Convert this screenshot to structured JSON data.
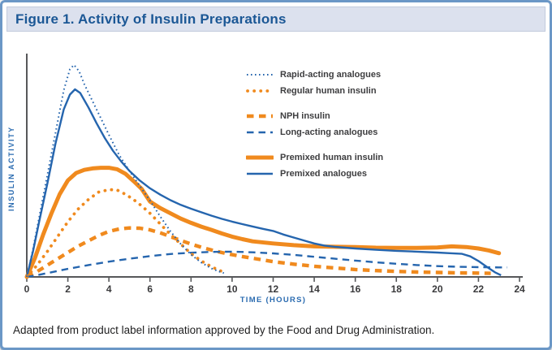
{
  "ui": {
    "title": "Figure 1. Activity of Insulin Preparations",
    "footnote": "Adapted from product label information approved by the Food and Drug Administration.",
    "colors": {
      "frame_border": "#6b97c6",
      "titlebar_bg": "#dce1ee",
      "title_text": "#1b5795",
      "axis": "#57585a",
      "axis_label_text": "#2a6bb0",
      "tick_text": "#39393b",
      "legend_text": "#3d3d3f",
      "blue": "#2565ae",
      "orange": "#f08a1e"
    }
  },
  "chart_data": {
    "type": "line",
    "title": "Figure 1. Activity of Insulin Preparations",
    "xlabel": "TIME (HOURS)",
    "ylabel": "INSULIN ACTIVITY",
    "xlim": [
      0,
      24
    ],
    "ylim": [
      0,
      1.05
    ],
    "x_ticks": [
      0,
      2,
      4,
      6,
      8,
      10,
      12,
      14,
      16,
      18,
      20,
      22,
      24
    ],
    "y_ticks": [],
    "grid": false,
    "legend_position": "upper-right-inside",
    "legend_groups": [
      [
        0,
        1
      ],
      [
        2,
        3
      ],
      [
        4,
        5
      ]
    ],
    "series": [
      {
        "name": "Rapid-acting analogues",
        "color": "#2565ae",
        "style": "dotted-fine",
        "points": [
          [
            0,
            0
          ],
          [
            0.3,
            0.13
          ],
          [
            0.6,
            0.28
          ],
          [
            1,
            0.48
          ],
          [
            1.4,
            0.68
          ],
          [
            1.8,
            0.88
          ],
          [
            2.1,
            0.98
          ],
          [
            2.3,
            1.0
          ],
          [
            2.55,
            0.97
          ],
          [
            2.8,
            0.91
          ],
          [
            3.2,
            0.83
          ],
          [
            3.6,
            0.75
          ],
          [
            4,
            0.67
          ],
          [
            4.5,
            0.575
          ],
          [
            5,
            0.5
          ],
          [
            5.5,
            0.43
          ],
          [
            6,
            0.36
          ],
          [
            6.5,
            0.285
          ],
          [
            7,
            0.215
          ],
          [
            7.5,
            0.155
          ],
          [
            8,
            0.105
          ],
          [
            8.5,
            0.068
          ],
          [
            9,
            0.04
          ],
          [
            9.3,
            0.028
          ],
          [
            9.6,
            0.018
          ]
        ]
      },
      {
        "name": "Regular human insulin",
        "color": "#f08a1e",
        "style": "dotted-round",
        "points": [
          [
            0,
            0
          ],
          [
            0.5,
            0.055
          ],
          [
            1,
            0.12
          ],
          [
            1.5,
            0.19
          ],
          [
            2,
            0.26
          ],
          [
            2.5,
            0.32
          ],
          [
            3,
            0.365
          ],
          [
            3.5,
            0.4
          ],
          [
            4,
            0.412
          ],
          [
            4.4,
            0.41
          ],
          [
            4.8,
            0.39
          ],
          [
            5.2,
            0.365
          ],
          [
            5.6,
            0.335
          ],
          [
            6,
            0.3
          ],
          [
            6.5,
            0.25
          ],
          [
            7,
            0.2
          ],
          [
            7.5,
            0.155
          ],
          [
            8,
            0.11
          ],
          [
            8.5,
            0.075
          ],
          [
            9,
            0.048
          ],
          [
            9.4,
            0.03
          ],
          [
            9.7,
            0.02
          ]
        ]
      },
      {
        "name": "NPH insulin",
        "color": "#f08a1e",
        "style": "dash-thick",
        "points": [
          [
            0,
            0
          ],
          [
            0.5,
            0.025
          ],
          [
            1,
            0.055
          ],
          [
            1.5,
            0.085
          ],
          [
            2,
            0.115
          ],
          [
            2.5,
            0.145
          ],
          [
            3,
            0.17
          ],
          [
            3.5,
            0.195
          ],
          [
            4,
            0.215
          ],
          [
            4.5,
            0.226
          ],
          [
            5,
            0.231
          ],
          [
            5.5,
            0.23
          ],
          [
            6,
            0.222
          ],
          [
            6.5,
            0.208
          ],
          [
            7,
            0.19
          ],
          [
            7.5,
            0.172
          ],
          [
            8,
            0.155
          ],
          [
            8.5,
            0.14
          ],
          [
            9,
            0.127
          ],
          [
            9.5,
            0.115
          ],
          [
            10,
            0.105
          ],
          [
            10.5,
            0.096
          ],
          [
            11,
            0.088
          ],
          [
            12,
            0.072
          ],
          [
            13,
            0.06
          ],
          [
            14,
            0.05
          ],
          [
            15,
            0.042
          ],
          [
            16,
            0.035
          ],
          [
            17,
            0.03
          ],
          [
            18,
            0.026
          ],
          [
            19,
            0.023
          ],
          [
            20,
            0.021
          ],
          [
            21,
            0.019
          ],
          [
            22,
            0.018
          ],
          [
            22.6,
            0.017
          ]
        ]
      },
      {
        "name": "Long-acting analogues",
        "color": "#2565ae",
        "style": "dash-thin",
        "points": [
          [
            0,
            0
          ],
          [
            0.5,
            0.008
          ],
          [
            1,
            0.018
          ],
          [
            1.5,
            0.028
          ],
          [
            2,
            0.038
          ],
          [
            3,
            0.056
          ],
          [
            4,
            0.072
          ],
          [
            5,
            0.086
          ],
          [
            6,
            0.098
          ],
          [
            7,
            0.108
          ],
          [
            8,
            0.114
          ],
          [
            9,
            0.118
          ],
          [
            10,
            0.119
          ],
          [
            11,
            0.116
          ],
          [
            12,
            0.111
          ],
          [
            13,
            0.104
          ],
          [
            14,
            0.095
          ],
          [
            15,
            0.086
          ],
          [
            16,
            0.077
          ],
          [
            17,
            0.069
          ],
          [
            18,
            0.062
          ],
          [
            19,
            0.056
          ],
          [
            20,
            0.051
          ],
          [
            21,
            0.048
          ],
          [
            22,
            0.046
          ],
          [
            23,
            0.045
          ],
          [
            23.4,
            0.045
          ]
        ]
      },
      {
        "name": "Premixed human insulin",
        "color": "#f08a1e",
        "style": "solid-thick",
        "points": [
          [
            0,
            0
          ],
          [
            0.4,
            0.09
          ],
          [
            0.8,
            0.2
          ],
          [
            1.2,
            0.3
          ],
          [
            1.6,
            0.39
          ],
          [
            2,
            0.455
          ],
          [
            2.4,
            0.49
          ],
          [
            2.8,
            0.505
          ],
          [
            3.2,
            0.512
          ],
          [
            3.6,
            0.515
          ],
          [
            4,
            0.515
          ],
          [
            4.4,
            0.508
          ],
          [
            4.8,
            0.487
          ],
          [
            5.2,
            0.452
          ],
          [
            5.6,
            0.415
          ],
          [
            6,
            0.355
          ],
          [
            6.5,
            0.325
          ],
          [
            7,
            0.3
          ],
          [
            7.5,
            0.275
          ],
          [
            8,
            0.255
          ],
          [
            8.5,
            0.237
          ],
          [
            9,
            0.222
          ],
          [
            9.5,
            0.205
          ],
          [
            10,
            0.19
          ],
          [
            10.5,
            0.178
          ],
          [
            11,
            0.168
          ],
          [
            12,
            0.158
          ],
          [
            13,
            0.15
          ],
          [
            14,
            0.144
          ],
          [
            15,
            0.142
          ],
          [
            16,
            0.141
          ],
          [
            17,
            0.138
          ],
          [
            18,
            0.137
          ],
          [
            19,
            0.137
          ],
          [
            20,
            0.139
          ],
          [
            20.7,
            0.144
          ],
          [
            21.4,
            0.141
          ],
          [
            22,
            0.134
          ],
          [
            22.5,
            0.125
          ],
          [
            23,
            0.112
          ]
        ]
      },
      {
        "name": "Premixed analogues",
        "color": "#2565ae",
        "style": "solid-thin",
        "points": [
          [
            0,
            0
          ],
          [
            0.3,
            0.12
          ],
          [
            0.6,
            0.26
          ],
          [
            1,
            0.44
          ],
          [
            1.4,
            0.63
          ],
          [
            1.8,
            0.79
          ],
          [
            2.1,
            0.86
          ],
          [
            2.35,
            0.885
          ],
          [
            2.6,
            0.868
          ],
          [
            3,
            0.8
          ],
          [
            3.4,
            0.725
          ],
          [
            3.8,
            0.655
          ],
          [
            4.2,
            0.595
          ],
          [
            4.6,
            0.545
          ],
          [
            5,
            0.5
          ],
          [
            5.5,
            0.455
          ],
          [
            6,
            0.418
          ],
          [
            6.5,
            0.388
          ],
          [
            7,
            0.362
          ],
          [
            7.5,
            0.34
          ],
          [
            8,
            0.322
          ],
          [
            8.5,
            0.305
          ],
          [
            9,
            0.289
          ],
          [
            9.5,
            0.274
          ],
          [
            10,
            0.261
          ],
          [
            10.5,
            0.249
          ],
          [
            11,
            0.238
          ],
          [
            11.5,
            0.227
          ],
          [
            12,
            0.217
          ],
          [
            12.5,
            0.2
          ],
          [
            13,
            0.186
          ],
          [
            13.5,
            0.172
          ],
          [
            14,
            0.158
          ],
          [
            14.5,
            0.148
          ],
          [
            15,
            0.142
          ],
          [
            15.5,
            0.138
          ],
          [
            16,
            0.134
          ],
          [
            17,
            0.128
          ],
          [
            18,
            0.123
          ],
          [
            19,
            0.119
          ],
          [
            20,
            0.115
          ],
          [
            20.6,
            0.112
          ],
          [
            21.2,
            0.109
          ],
          [
            21.6,
            0.097
          ],
          [
            22,
            0.075
          ],
          [
            22.4,
            0.048
          ],
          [
            22.8,
            0.022
          ],
          [
            23.1,
            0.008
          ]
        ]
      }
    ]
  }
}
